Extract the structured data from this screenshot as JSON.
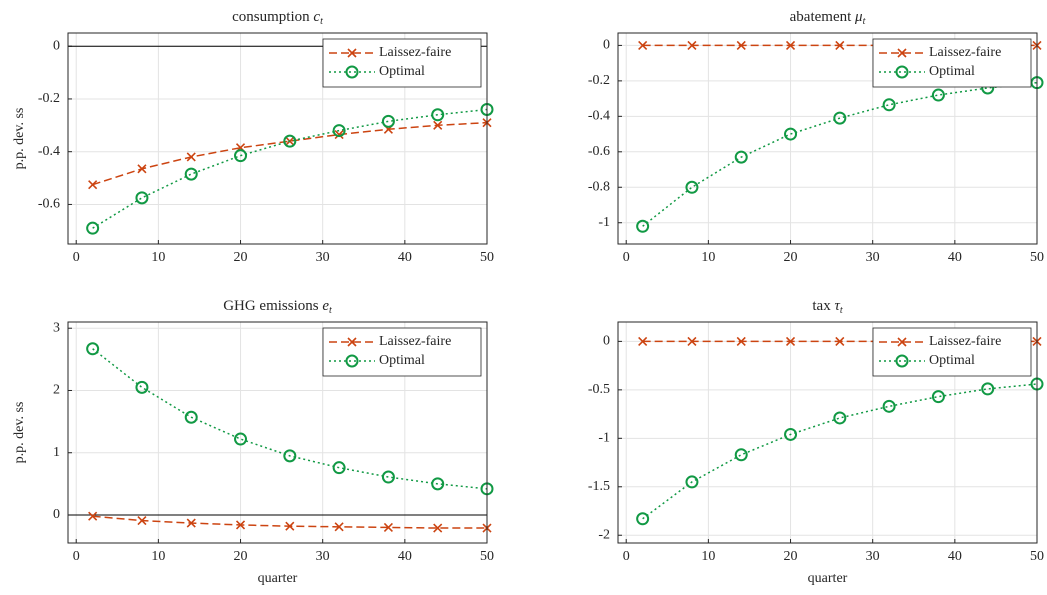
{
  "chart_data": [
    {
      "type": "line",
      "title": "consumption",
      "title_symbol": "c",
      "title_subscript": "t",
      "ylabel": "p.p. dev. ss",
      "x": [
        2,
        8,
        14,
        20,
        26,
        32,
        38,
        44,
        50
      ],
      "xlim": [
        -1,
        50
      ],
      "xticks": [
        0,
        10,
        20,
        30,
        40,
        50
      ],
      "ylim": [
        -0.75,
        0.05
      ],
      "yticks": [
        -0.6,
        -0.4,
        -0.2,
        0
      ],
      "grid": true,
      "zero_line": true,
      "legend": "northeast",
      "series": [
        {
          "name": "Laissez-faire",
          "color": "#cc4411",
          "linestyle": "dashed",
          "marker": "x",
          "values": [
            -0.525,
            -0.465,
            -0.42,
            -0.385,
            -0.36,
            -0.335,
            -0.315,
            -0.3,
            -0.29
          ]
        },
        {
          "name": "Optimal",
          "color": "#119944",
          "linestyle": "dotted",
          "marker": "circle",
          "values": [
            -0.69,
            -0.575,
            -0.485,
            -0.415,
            -0.36,
            -0.32,
            -0.285,
            -0.26,
            -0.24
          ]
        }
      ]
    },
    {
      "type": "line",
      "title": "abatement",
      "title_symbol": "μ",
      "title_subscript": "t",
      "x": [
        2,
        8,
        14,
        20,
        26,
        32,
        38,
        44,
        50
      ],
      "xlim": [
        -1,
        50
      ],
      "xticks": [
        0,
        10,
        20,
        30,
        40,
        50
      ],
      "ylim": [
        -1.12,
        0.07
      ],
      "yticks": [
        -1,
        -0.8,
        -0.6,
        -0.4,
        -0.2,
        0
      ],
      "grid": true,
      "zero_line": false,
      "legend": "northeast",
      "series": [
        {
          "name": "Laissez-faire",
          "color": "#cc4411",
          "linestyle": "dashed",
          "marker": "x",
          "values": [
            0,
            0,
            0,
            0,
            0,
            0,
            0,
            0,
            0
          ]
        },
        {
          "name": "Optimal",
          "color": "#119944",
          "linestyle": "dotted",
          "marker": "circle",
          "values": [
            -1.02,
            -0.8,
            -0.63,
            -0.5,
            -0.41,
            -0.335,
            -0.28,
            -0.24,
            -0.21
          ]
        }
      ]
    },
    {
      "type": "line",
      "title": "GHG emissions",
      "title_symbol": "e",
      "title_subscript": "t",
      "ylabel": "p.p. dev. ss",
      "xlabel": "quarter",
      "x": [
        2,
        8,
        14,
        20,
        26,
        32,
        38,
        44,
        50
      ],
      "xlim": [
        -1,
        50
      ],
      "xticks": [
        0,
        10,
        20,
        30,
        40,
        50
      ],
      "ylim": [
        -0.45,
        3.1
      ],
      "yticks": [
        0,
        1,
        2,
        3
      ],
      "grid": true,
      "zero_line": true,
      "legend": "northeast",
      "series": [
        {
          "name": "Laissez-faire",
          "color": "#cc4411",
          "linestyle": "dashed",
          "marker": "x",
          "values": [
            -0.02,
            -0.09,
            -0.13,
            -0.16,
            -0.18,
            -0.19,
            -0.2,
            -0.21,
            -0.21
          ]
        },
        {
          "name": "Optimal",
          "color": "#119944",
          "linestyle": "dotted",
          "marker": "circle",
          "values": [
            2.67,
            2.05,
            1.57,
            1.22,
            0.95,
            0.76,
            0.61,
            0.5,
            0.42
          ]
        }
      ]
    },
    {
      "type": "line",
      "title": "tax",
      "title_symbol": "τ",
      "title_subscript": "t",
      "xlabel": "quarter",
      "x": [
        2,
        8,
        14,
        20,
        26,
        32,
        38,
        44,
        50
      ],
      "xlim": [
        -1,
        50
      ],
      "xticks": [
        0,
        10,
        20,
        30,
        40,
        50
      ],
      "ylim": [
        -2.08,
        0.2
      ],
      "yticks": [
        -2,
        -1.5,
        -1,
        -0.5,
        0
      ],
      "grid": true,
      "zero_line": false,
      "legend": "northeast",
      "series": [
        {
          "name": "Laissez-faire",
          "color": "#cc4411",
          "linestyle": "dashed",
          "marker": "x",
          "values": [
            0,
            0,
            0,
            0,
            0,
            0,
            0,
            0,
            0
          ]
        },
        {
          "name": "Optimal",
          "color": "#119944",
          "linestyle": "dotted",
          "marker": "circle",
          "values": [
            -1.83,
            -1.45,
            -1.17,
            -0.96,
            -0.79,
            -0.67,
            -0.57,
            -0.49,
            -0.44
          ]
        }
      ]
    }
  ]
}
